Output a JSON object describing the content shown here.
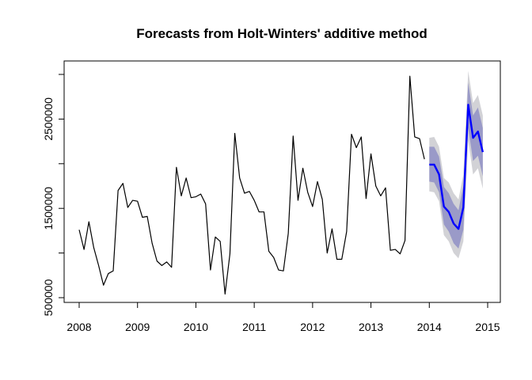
{
  "chart_data": {
    "type": "line",
    "title": "Forecasts from Holt-Winters' additive method",
    "xlabel": "",
    "ylabel": "",
    "xlim": [
      2008,
      2015
    ],
    "ylim": [
      500000,
      3000000
    ],
    "x_ticks": [
      "2008",
      "2009",
      "2010",
      "2011",
      "2012",
      "2013",
      "2014",
      "2015"
    ],
    "y_ticks": [
      "500000",
      "1500000",
      "2500000"
    ],
    "grid": false,
    "legend": "none",
    "colors": {
      "observed": "#000000",
      "forecast": "#0000ff",
      "band_80": "#9a9ac8",
      "band_95": "#d2d2d6"
    },
    "series": [
      {
        "start": 2008,
        "frequency": 12,
        "values": [
          1260000,
          1040000,
          1350000,
          1060000,
          860000,
          640000,
          770000,
          800000,
          1700000,
          1780000,
          1510000,
          1590000,
          1580000,
          1400000,
          1410000,
          1110000,
          910000,
          860000,
          900000,
          840000,
          1960000,
          1640000,
          1840000,
          1620000,
          1630000,
          1660000,
          1550000,
          810000,
          1180000,
          1130000,
          540000,
          990000,
          2340000,
          1840000,
          1670000,
          1690000,
          1590000,
          1460000,
          1460000,
          1020000,
          950000,
          810000,
          800000,
          1220000,
          2310000,
          1590000,
          1950000,
          1680000,
          1520000,
          1800000,
          1600000,
          1000000,
          1270000,
          930000,
          930000,
          1240000,
          2330000,
          2180000,
          2300000,
          1610000,
          2110000,
          1750000,
          1640000,
          1730000,
          1030000,
          1040000,
          990000,
          1140000,
          2980000,
          2300000,
          2280000,
          2050000
        ]
      },
      {
        "start": 2014,
        "frequency": 12,
        "values": [
          1990000,
          1990000,
          1880000,
          1520000,
          1460000,
          1330000,
          1270000,
          1510000,
          2660000,
          2290000,
          2360000,
          2130000
        ],
        "lo80": [
          1800000,
          1790000,
          1680000,
          1320000,
          1240000,
          1110000,
          1050000,
          1260000,
          2400000,
          2030000,
          2090000,
          1860000
        ],
        "hi80": [
          2190000,
          2190000,
          2080000,
          1740000,
          1670000,
          1550000,
          1480000,
          1750000,
          2910000,
          2540000,
          2630000,
          2400000
        ],
        "lo95": [
          1690000,
          1680000,
          1580000,
          1200000,
          1130000,
          1000000,
          940000,
          1130000,
          2260000,
          1880000,
          1950000,
          1720000
        ],
        "hi95": [
          2290000,
          2300000,
          2190000,
          1840000,
          1790000,
          1670000,
          1600000,
          1880000,
          3040000,
          2680000,
          2770000,
          2540000
        ]
      }
    ]
  }
}
